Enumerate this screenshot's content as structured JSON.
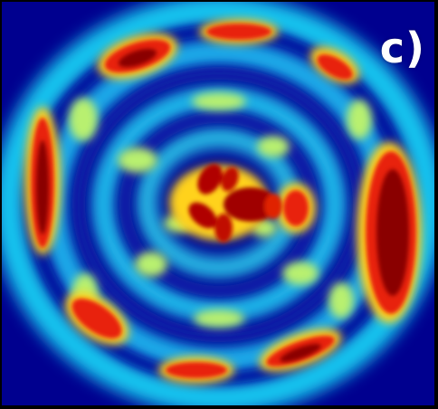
{
  "figure": {
    "panel_label": "c)",
    "panel_label_color": "#ffffff",
    "frame_color": "#000000",
    "colormap": "jet",
    "colormap_stops": [
      "#00008f",
      "#0000ff",
      "#00ffff",
      "#ffff00",
      "#ff0000",
      "#800000"
    ],
    "background_color": "#00008f"
  }
}
